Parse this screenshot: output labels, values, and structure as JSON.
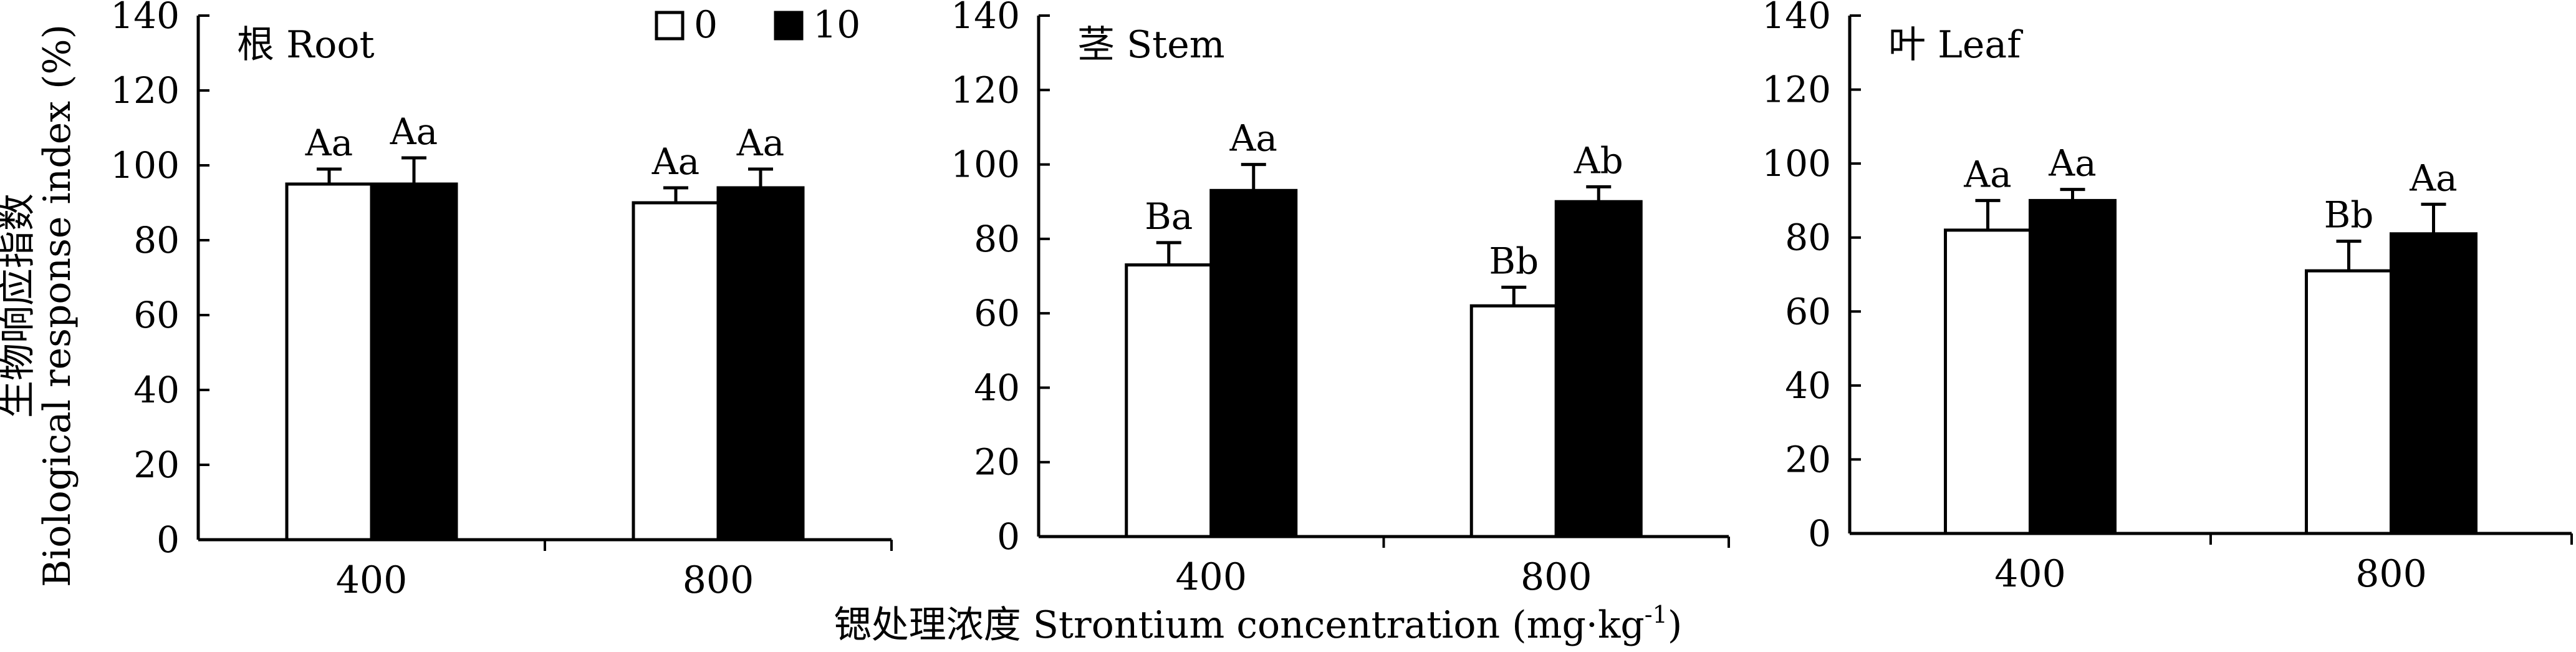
{
  "chart_data": {
    "type": "bar",
    "legend": {
      "entries": [
        {
          "label": "0",
          "fill": "#ffffff"
        },
        {
          "label": "10",
          "fill": "#000000"
        }
      ],
      "position": "top-right of first panel"
    },
    "ylabel_zh": "生物响应指数",
    "ylabel_en": "Biological response index (%)",
    "xlabel_main": "锶处理浓度 Strontium concentration (mg·kg",
    "xlabel_sup": "-1",
    "xlabel_tail": ")",
    "ylim": [
      0,
      140
    ],
    "yticks": [
      0,
      20,
      40,
      60,
      80,
      100,
      120,
      140
    ],
    "categories": [
      "400",
      "800"
    ],
    "panels": [
      {
        "title": "根 Root",
        "series": [
          {
            "name": "0",
            "values": [
              95,
              90
            ],
            "errors": [
              4,
              4
            ],
            "letters": [
              "Aa",
              "Aa"
            ]
          },
          {
            "name": "10",
            "values": [
              95,
              94
            ],
            "errors": [
              7,
              5
            ],
            "letters": [
              "Aa",
              "Aa"
            ]
          }
        ]
      },
      {
        "title": "茎 Stem",
        "series": [
          {
            "name": "0",
            "values": [
              73,
              62
            ],
            "errors": [
              6,
              5
            ],
            "letters": [
              "Ba",
              "Bb"
            ]
          },
          {
            "name": "10",
            "values": [
              93,
              90
            ],
            "errors": [
              7,
              4
            ],
            "letters": [
              "Aa",
              "Ab"
            ]
          }
        ]
      },
      {
        "title": "叶 Leaf",
        "series": [
          {
            "name": "0",
            "values": [
              82,
              71
            ],
            "errors": [
              8,
              8
            ],
            "letters": [
              "Aa",
              "Bb"
            ]
          },
          {
            "name": "10",
            "values": [
              90,
              81
            ],
            "errors": [
              3,
              8
            ],
            "letters": [
              "Aa",
              "Aa"
            ]
          }
        ]
      }
    ]
  }
}
